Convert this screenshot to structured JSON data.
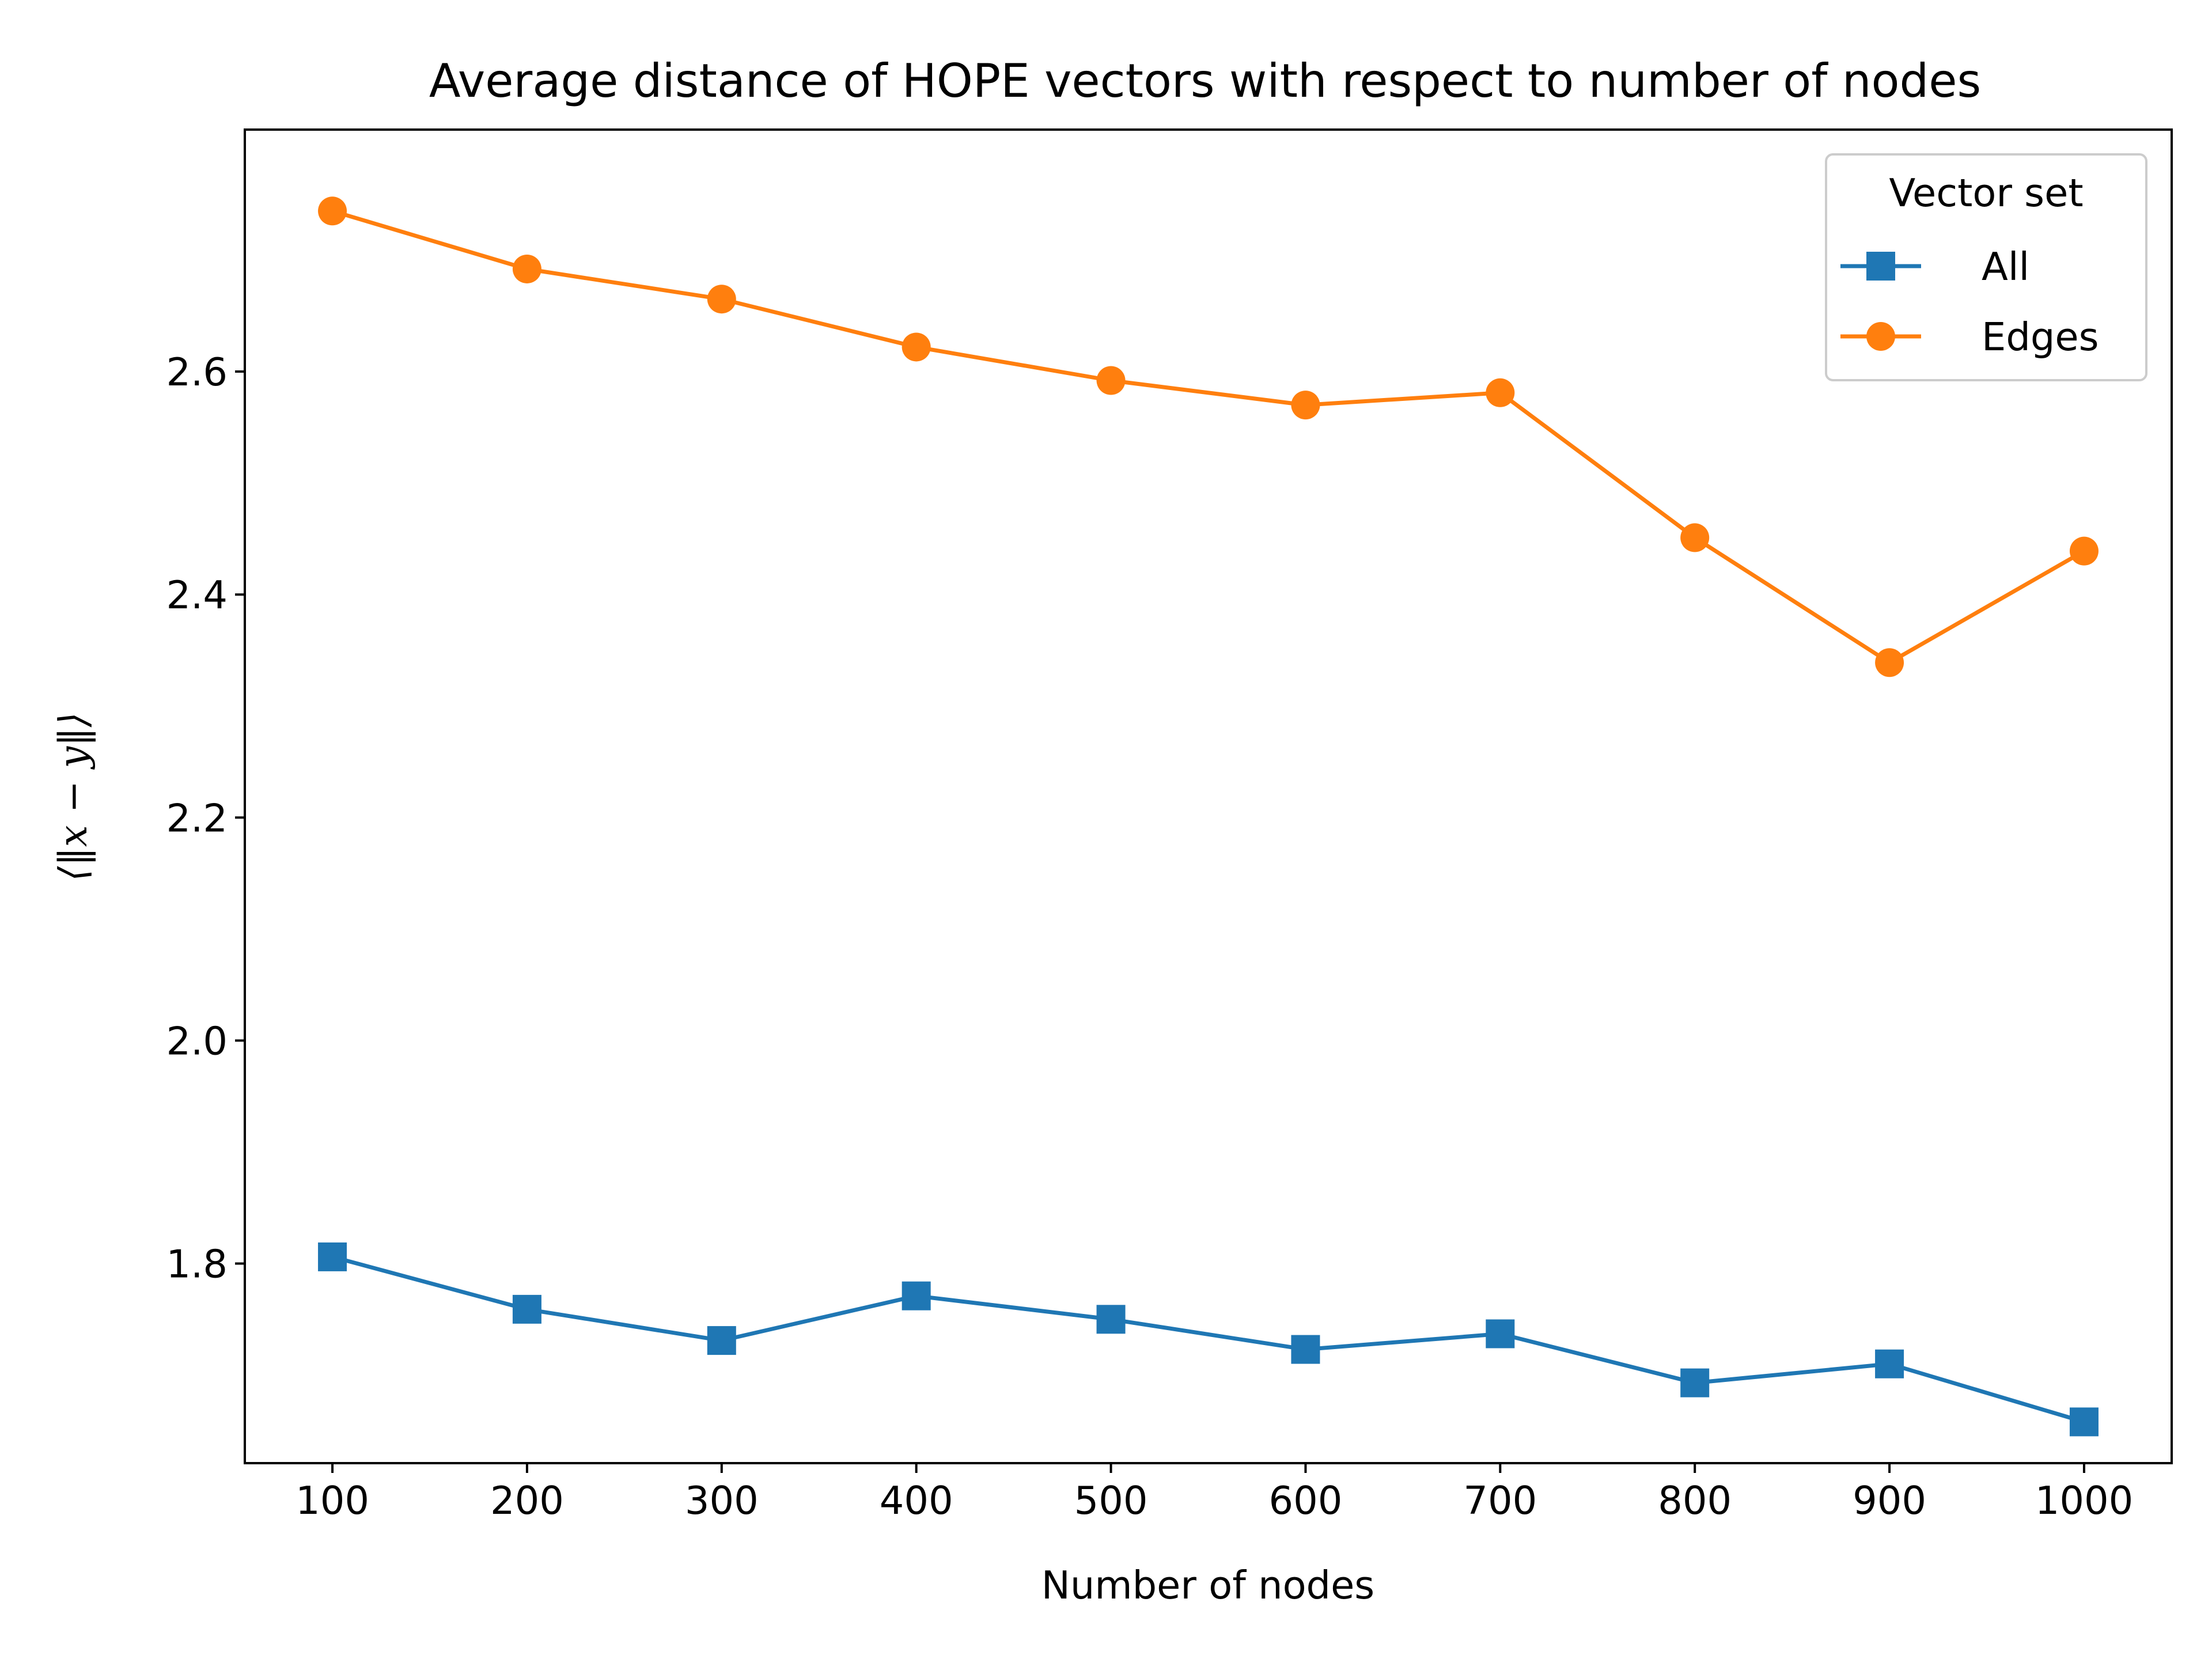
{
  "chart_data": {
    "type": "line",
    "title": "Average distance of HOPE vectors with respect to number of nodes",
    "xlabel": "Number of nodes",
    "ylabel": "⟨‖x − y‖⟩",
    "x": [
      100,
      200,
      300,
      400,
      500,
      600,
      700,
      800,
      900,
      1000
    ],
    "xticks": [
      "100",
      "200",
      "300",
      "400",
      "500",
      "600",
      "700",
      "800",
      "900",
      "1000"
    ],
    "yticks": [
      "1.8",
      "2.0",
      "2.2",
      "2.4",
      "2.6"
    ],
    "xlim": [
      55,
      1045
    ],
    "ylim": [
      1.621,
      2.817
    ],
    "grid": false,
    "legend": {
      "title": "Vector set",
      "placement": "top-right"
    },
    "series": [
      {
        "name": "All",
        "color": "#1f77b4",
        "marker": "square",
        "values": [
          1.806,
          1.759,
          1.731,
          1.771,
          1.75,
          1.723,
          1.737,
          1.693,
          1.71,
          1.658
        ]
      },
      {
        "name": "Edges",
        "color": "#ff7f0e",
        "marker": "circle",
        "values": [
          2.744,
          2.692,
          2.665,
          2.622,
          2.592,
          2.57,
          2.581,
          2.451,
          2.339,
          2.439
        ]
      }
    ]
  }
}
